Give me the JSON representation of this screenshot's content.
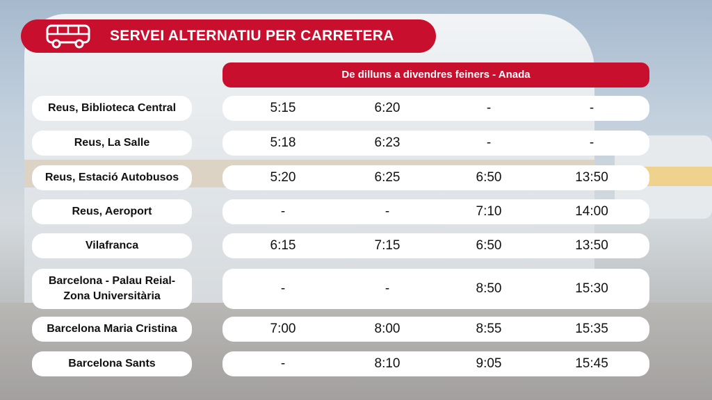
{
  "title": "SERVEI ALTERNATIU PER CARRETERA",
  "header": "De dilluns a divendres feiners - Anada",
  "colors": {
    "accent": "#c8102e",
    "row_bg": "#ffffff"
  },
  "icons": {
    "title_icon": "bus-icon"
  },
  "rows": [
    {
      "stop": "Reus, Biblioteca Central",
      "times": [
        "5:15",
        "6:20",
        "-",
        "-"
      ]
    },
    {
      "stop": "Reus, La Salle",
      "times": [
        "5:18",
        "6:23",
        "-",
        "-"
      ]
    },
    {
      "stop": "Reus, Estació Autobusos",
      "times": [
        "5:20",
        "6:25",
        "6:50",
        "13:50"
      ]
    },
    {
      "stop": "Reus, Aeroport",
      "times": [
        "-",
        "-",
        "7:10",
        "14:00"
      ]
    },
    {
      "stop": "Vilafranca",
      "times": [
        "6:15",
        "7:15",
        "6:50",
        "13:50"
      ]
    },
    {
      "stop": "Barcelona - Palau Reial- Zona Universitària",
      "times": [
        "-",
        "-",
        "8:50",
        "15:30"
      ]
    },
    {
      "stop": "Barcelona Maria Cristina",
      "times": [
        "7:00",
        "8:00",
        "8:55",
        "15:35"
      ]
    },
    {
      "stop": "Barcelona Sants",
      "times": [
        "-",
        "8:10",
        "9:05",
        "15:45"
      ]
    }
  ]
}
